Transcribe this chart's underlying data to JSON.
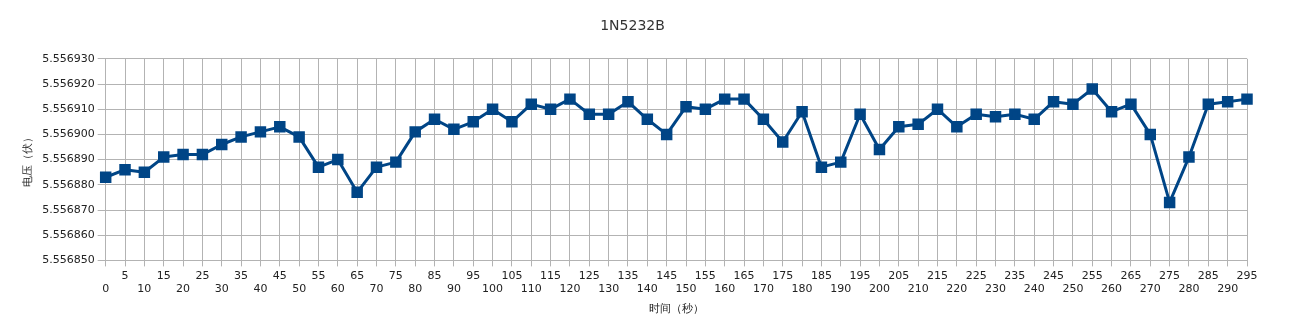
{
  "chart_data": {
    "type": "line",
    "title": "1N5232B",
    "xlabel": "时间（秒）",
    "ylabel": "电压（伏）",
    "categories": [
      "0",
      "5",
      "10",
      "15",
      "20",
      "25",
      "30",
      "35",
      "40",
      "45",
      "50",
      "55",
      "60",
      "65",
      "70",
      "75",
      "80",
      "85",
      "90",
      "95",
      "100",
      "105",
      "110",
      "115",
      "120",
      "125",
      "130",
      "135",
      "140",
      "145",
      "150",
      "155",
      "160",
      "165",
      "170",
      "175",
      "180",
      "185",
      "190",
      "195",
      "200",
      "205",
      "210",
      "215",
      "220",
      "225",
      "230",
      "235",
      "240",
      "245",
      "250",
      "255",
      "260",
      "265",
      "270",
      "275",
      "280",
      "285",
      "290",
      "295"
    ],
    "series": [
      {
        "color": "#004586",
        "values": [
          5.556883,
          5.556886,
          5.556885,
          5.556891,
          5.556892,
          5.556892,
          5.556896,
          5.556899,
          5.556901,
          5.556903,
          5.556899,
          5.556887,
          5.55689,
          5.556877,
          5.556887,
          5.556889,
          5.556901,
          5.556906,
          5.556902,
          5.556905,
          5.55691,
          5.556905,
          5.556912,
          5.55691,
          5.556914,
          5.556908,
          5.556908,
          5.556913,
          5.556906,
          5.5569,
          5.556911,
          5.55691,
          5.556914,
          5.556914,
          5.556906,
          5.556897,
          5.556909,
          5.556887,
          5.556889,
          5.556908,
          5.556894,
          5.556903,
          5.556904,
          5.55691,
          5.556903,
          5.556908,
          5.556907,
          5.556908,
          5.556906,
          5.556913,
          5.556912,
          5.556918,
          5.556909,
          5.556912,
          5.5569,
          5.556873,
          5.556891,
          5.556912,
          5.556913,
          5.556914
        ]
      }
    ],
    "ylim": [
      5.55685,
      5.55693
    ],
    "yticks": [
      {
        "value": 5.55685,
        "label": "5.556850"
      },
      {
        "value": 5.55686,
        "label": "5.556860"
      },
      {
        "value": 5.55687,
        "label": "5.556870"
      },
      {
        "value": 5.55688,
        "label": "5.556880"
      },
      {
        "value": 5.55689,
        "label": "5.556890"
      },
      {
        "value": 5.5569,
        "label": "5.556900"
      },
      {
        "value": 5.55691,
        "label": "5.556910"
      },
      {
        "value": 5.55692,
        "label": "5.556920"
      },
      {
        "value": 5.55693,
        "label": "5.556930"
      }
    ],
    "grid": true,
    "legend": false,
    "marker": "square",
    "line_style": "solid"
  }
}
